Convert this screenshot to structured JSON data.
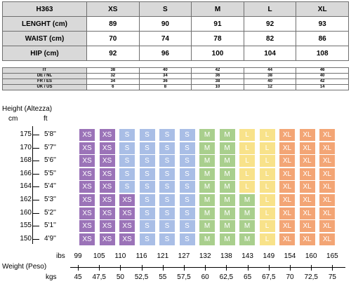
{
  "colors": {
    "XS": "#9b73b8",
    "S": "#a9bee6",
    "M": "#a9cf8d",
    "L": "#f8e28a",
    "XL": "#f3a575"
  },
  "main_table": {
    "header": [
      "H363",
      "XS",
      "S",
      "M",
      "L",
      "XL"
    ],
    "rows": [
      [
        "LENGHT (cm)",
        "89",
        "90",
        "91",
        "92",
        "93"
      ],
      [
        "WAIST (cm)",
        "70",
        "74",
        "78",
        "82",
        "86"
      ],
      [
        "HIP (cm)",
        "92",
        "96",
        "100",
        "104",
        "108"
      ]
    ]
  },
  "conversion_table": {
    "rows": [
      [
        "IT",
        "38",
        "40",
        "42",
        "44",
        "46"
      ],
      [
        "DE / NL",
        "32",
        "34",
        "36",
        "38",
        "40"
      ],
      [
        "FR / ES",
        "34",
        "36",
        "38",
        "40",
        "42"
      ],
      [
        "UK / US",
        "6",
        "8",
        "10",
        "12",
        "14"
      ]
    ]
  },
  "chart": {
    "height_label": "Height (Altezza)",
    "cm_label": "cm",
    "ft_label": "ft",
    "rows": [
      {
        "cm": "175",
        "ft": "5'8''",
        "sizes": [
          "XS",
          "XS",
          "S",
          "S",
          "S",
          "S",
          "M",
          "M",
          "L",
          "L",
          "XL",
          "XL",
          "XL"
        ]
      },
      {
        "cm": "170",
        "ft": "5'7''",
        "sizes": [
          "XS",
          "XS",
          "S",
          "S",
          "S",
          "S",
          "M",
          "M",
          "L",
          "L",
          "XL",
          "XL",
          "XL"
        ]
      },
      {
        "cm": "168",
        "ft": "5'6''",
        "sizes": [
          "XS",
          "XS",
          "S",
          "S",
          "S",
          "S",
          "M",
          "M",
          "L",
          "L",
          "XL",
          "XL",
          "XL"
        ]
      },
      {
        "cm": "166",
        "ft": "5'5''",
        "sizes": [
          "XS",
          "XS",
          "S",
          "S",
          "S",
          "S",
          "M",
          "M",
          "L",
          "L",
          "XL",
          "XL",
          "XL"
        ]
      },
      {
        "cm": "164",
        "ft": "5'4''",
        "sizes": [
          "XS",
          "XS",
          "S",
          "S",
          "S",
          "S",
          "M",
          "M",
          "L",
          "L",
          "XL",
          "XL",
          "XL"
        ]
      },
      {
        "cm": "162",
        "ft": "5'3''",
        "sizes": [
          "XS",
          "XS",
          "XS",
          "S",
          "S",
          "S",
          "M",
          "M",
          "M",
          "L",
          "XL",
          "XL",
          "XL"
        ]
      },
      {
        "cm": "160",
        "ft": "5'2''",
        "sizes": [
          "XS",
          "XS",
          "XS",
          "S",
          "S",
          "S",
          "M",
          "M",
          "M",
          "L",
          "XL",
          "XL",
          "XL"
        ]
      },
      {
        "cm": "155",
        "ft": "5'1''",
        "sizes": [
          "XS",
          "XS",
          "XS",
          "S",
          "S",
          "S",
          "M",
          "M",
          "M",
          "L",
          "XL",
          "XL",
          "XL"
        ]
      },
      {
        "cm": "150",
        "ft": "4'9''",
        "sizes": [
          "XS",
          "XS",
          "XS",
          "S",
          "S",
          "S",
          "M",
          "M",
          "M",
          "L",
          "XL",
          "XL",
          "XL"
        ]
      }
    ],
    "ibs_label": "ibs",
    "ibs": [
      "99",
      "105",
      "110",
      "116",
      "121",
      "127",
      "132",
      "138",
      "143",
      "149",
      "154",
      "160",
      "165"
    ],
    "weight_label": "Weight (Peso)",
    "kgs_label": "kgs",
    "kgs": [
      "45",
      "47,5",
      "50",
      "52,5",
      "55",
      "57,5",
      "60",
      "62,5",
      "65",
      "67,5",
      "70",
      "72,5",
      "75"
    ]
  }
}
